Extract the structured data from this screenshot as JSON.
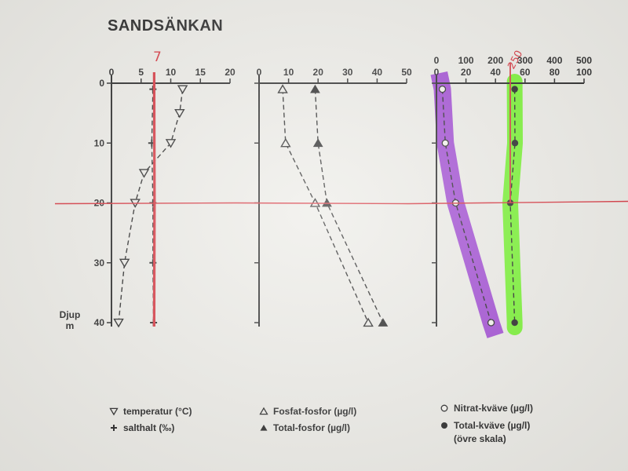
{
  "title": "SANDSÄNKAN",
  "depth_label_line1": "Djup",
  "depth_label_line2": "m",
  "annotations": {
    "handwritten_7": "7",
    "handwritten_250": "250",
    "colors": {
      "pen_red": "#d5303a",
      "highlight_purple": "#9b3fd1",
      "highlight_green": "#6ff224"
    }
  },
  "legend": {
    "temperature": "temperatur (°C)",
    "salinity": "salthalt (‰)",
    "phosphate": "Fosfat-fosfor (µg/l)",
    "total_phosphorus": "Total-fosfor (µg/l)",
    "nitrate": "Nitrat-kväve (µg/l)",
    "total_nitrogen_line1": "Total-kväve (µg/l)",
    "total_nitrogen_line2": "(övre skala)"
  },
  "chart_data": [
    {
      "type": "line",
      "panel": 1,
      "x_ticks": [
        "0",
        "5",
        "10",
        "15",
        "20"
      ],
      "xlim": [
        0,
        20
      ],
      "y_ticks": [
        "0",
        "10",
        "20",
        "30",
        "40"
      ],
      "ylim": [
        0,
        40
      ],
      "y_inverted": true,
      "series": [
        {
          "name": "temperatur (°C)",
          "marker": "triangle-down-open",
          "depth": [
            1,
            5,
            10,
            15,
            20,
            30,
            40
          ],
          "values": [
            12,
            11.5,
            10,
            5.5,
            4,
            2.2,
            1.2
          ]
        },
        {
          "name": "salthalt (‰)",
          "marker": "plus",
          "depth": [
            1,
            10,
            20,
            30,
            40
          ],
          "values": [
            7,
            6.8,
            7,
            7,
            7.1
          ]
        }
      ],
      "reference_lines": {
        "vertical_x": 7.2,
        "horizontal_depth": 20
      }
    },
    {
      "type": "line",
      "panel": 2,
      "x_ticks": [
        "0",
        "10",
        "20",
        "30",
        "40",
        "50"
      ],
      "xlim": [
        0,
        50
      ],
      "ylim": [
        0,
        40
      ],
      "y_inverted": true,
      "series": [
        {
          "name": "Fosfat-fosfor (µg/l)",
          "marker": "triangle-up-open",
          "depth": [
            1,
            10,
            20,
            40
          ],
          "values": [
            8,
            9,
            19,
            37
          ]
        },
        {
          "name": "Total-fosfor (µg/l)",
          "marker": "triangle-up-filled",
          "depth": [
            1,
            10,
            20,
            40
          ],
          "values": [
            19,
            20,
            23,
            42
          ]
        }
      ]
    },
    {
      "type": "line",
      "panel": 3,
      "x_ticks_upper": [
        "0",
        "100",
        "200",
        "300",
        "400",
        "500"
      ],
      "xlim_upper": [
        0,
        500
      ],
      "x_ticks_lower": [
        "0",
        "20",
        "40",
        "60",
        "80",
        "100"
      ],
      "xlim_lower": [
        0,
        100
      ],
      "ylim": [
        0,
        40
      ],
      "y_inverted": true,
      "series": [
        {
          "name": "Nitrat-kväve (µg/l)",
          "scale": "lower",
          "marker": "circle-open",
          "depth": [
            1,
            10,
            20,
            40
          ],
          "values": [
            4,
            6,
            13,
            37
          ]
        },
        {
          "name": "Total-kväve (µg/l)",
          "scale": "upper",
          "marker": "circle-filled",
          "depth": [
            1,
            10,
            20,
            40
          ],
          "values": [
            265,
            266,
            250,
            265
          ]
        }
      ],
      "reference_lines": {
        "vertical_upper": 250,
        "horizontal_depth": 20
      }
    }
  ]
}
